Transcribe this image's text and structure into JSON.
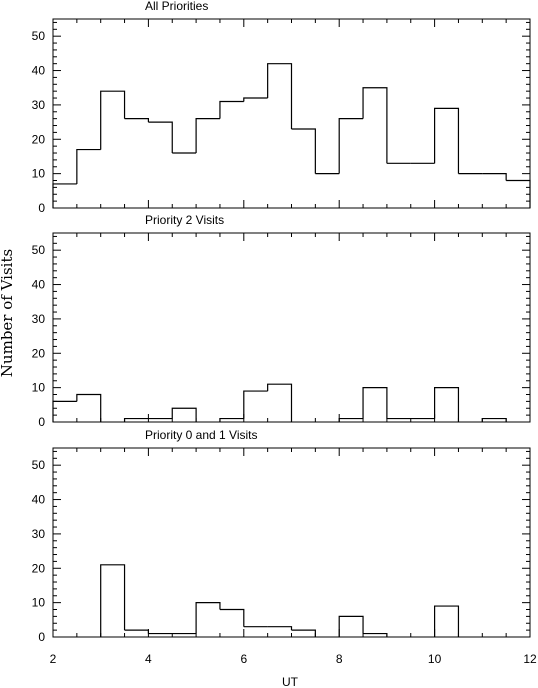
{
  "figure": {
    "ylabel": "Number of Visits",
    "xlabel": "UT"
  },
  "chart_data": [
    {
      "type": "bar",
      "title": "All Priorities",
      "xlim": [
        2,
        12
      ],
      "ylim": [
        0,
        55
      ],
      "yticks": [
        0,
        10,
        20,
        30,
        40,
        50
      ],
      "xticks": [
        2,
        4,
        6,
        8,
        10,
        12
      ],
      "bin_width": 0.5,
      "bin_starts": [
        2.0,
        2.5,
        3.0,
        3.5,
        4.0,
        4.5,
        5.0,
        5.5,
        6.0,
        6.5,
        7.0,
        7.5,
        8.0,
        8.5,
        9.0,
        9.5,
        10.0,
        10.5,
        11.0,
        11.5
      ],
      "values": [
        7,
        17,
        34,
        26,
        25,
        16,
        26,
        31,
        32,
        42,
        23,
        10,
        26,
        35,
        13,
        13,
        29,
        10,
        10,
        8
      ],
      "xlabel": "",
      "ylabel": ""
    },
    {
      "type": "bar",
      "title": "Priority 2 Visits",
      "xlim": [
        2,
        12
      ],
      "ylim": [
        0,
        55
      ],
      "yticks": [
        0,
        10,
        20,
        30,
        40,
        50
      ],
      "xticks": [
        2,
        4,
        6,
        8,
        10,
        12
      ],
      "bin_width": 0.5,
      "bin_starts": [
        2.0,
        2.5,
        3.0,
        3.5,
        4.0,
        4.5,
        5.0,
        5.5,
        6.0,
        6.5,
        7.0,
        7.5,
        8.0,
        8.5,
        9.0,
        9.5,
        10.0,
        10.5,
        11.0,
        11.5
      ],
      "values": [
        6,
        8,
        0,
        1,
        1,
        4,
        0,
        1,
        9,
        11,
        0,
        0,
        1,
        10,
        1,
        1,
        10,
        0,
        1,
        0
      ],
      "xlabel": "",
      "ylabel": ""
    },
    {
      "type": "bar",
      "title": "Priority 0 and 1 Visits",
      "xlim": [
        2,
        12
      ],
      "ylim": [
        0,
        55
      ],
      "yticks": [
        0,
        10,
        20,
        30,
        40,
        50
      ],
      "xticks": [
        2,
        4,
        6,
        8,
        10,
        12
      ],
      "bin_width": 0.5,
      "bin_starts": [
        2.0,
        2.5,
        3.0,
        3.5,
        4.0,
        4.5,
        5.0,
        5.5,
        6.0,
        6.5,
        7.0,
        7.5,
        8.0,
        8.5,
        9.0,
        9.5,
        10.0,
        10.5,
        11.0,
        11.5
      ],
      "values": [
        0,
        0,
        21,
        2,
        1,
        1,
        10,
        8,
        3,
        3,
        2,
        0,
        6,
        1,
        0,
        0,
        9,
        0,
        0,
        0
      ],
      "xlabel": "UT",
      "ylabel": ""
    }
  ]
}
